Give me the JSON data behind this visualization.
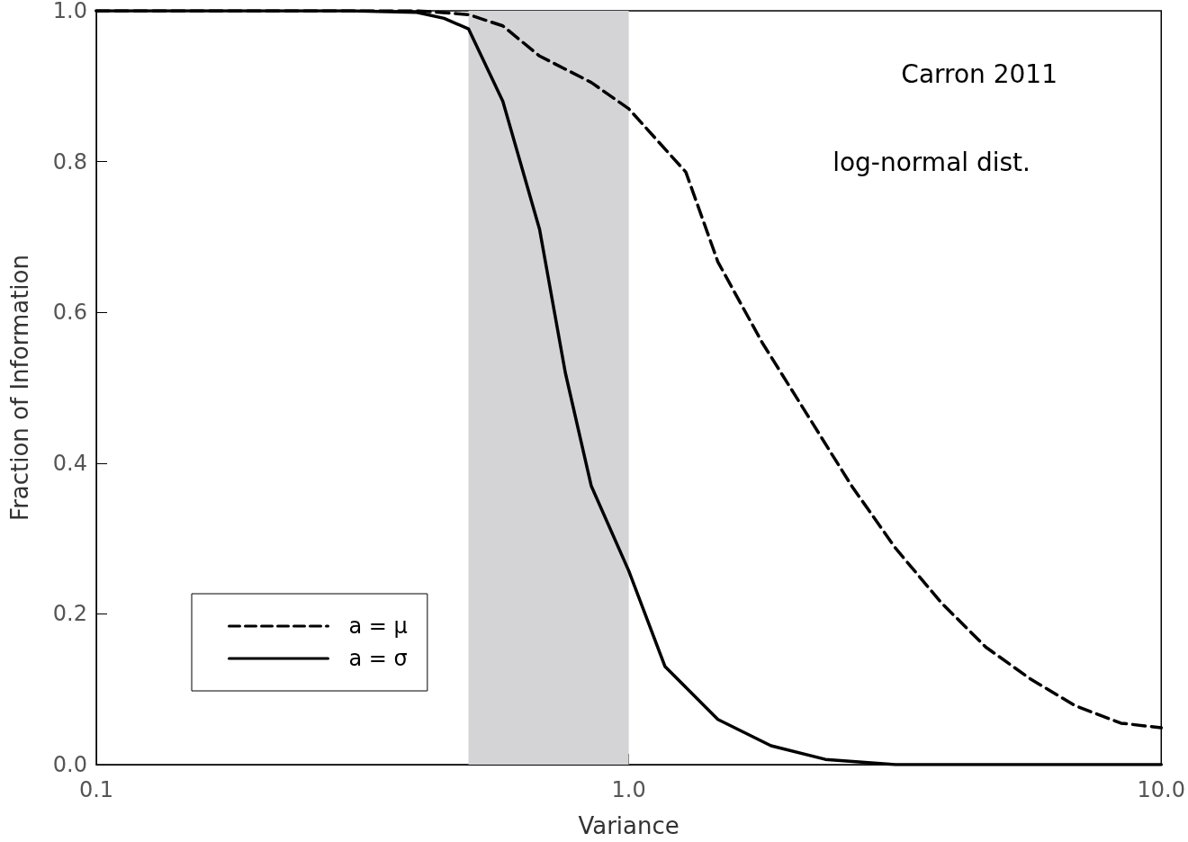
{
  "chart_data": {
    "type": "line",
    "xlabel": "Variance",
    "ylabel": "Fraction of Information",
    "annotations": [
      "Carron 2011",
      "log-normal dist."
    ],
    "log": "x",
    "xlim": [
      0.1,
      10
    ],
    "xticks": [
      {
        "value": 0.1,
        "label": "0.1"
      },
      {
        "value": 1,
        "label": "1.0"
      },
      {
        "value": 10,
        "label": "10.0"
      }
    ],
    "ylim": [
      0,
      1
    ],
    "yticks": [
      {
        "value": 0,
        "label": "0.0"
      },
      {
        "value": 0.2,
        "label": "0.2"
      },
      {
        "value": 0.4,
        "label": "0.4"
      },
      {
        "value": 0.6,
        "label": "0.6"
      },
      {
        "value": 0.8,
        "label": "0.8"
      },
      {
        "value": 1,
        "label": "1.0"
      }
    ],
    "grid": false,
    "legend": "bottom left",
    "marker": "none",
    "bands": [
      {
        "axis": "x",
        "from": 0.5,
        "to": 1.0,
        "color": "#d4d4d6"
      }
    ],
    "series": [
      {
        "name": "a = μ",
        "color": "#000000",
        "line_style": "dashed",
        "x": [
          0.1,
          0.3,
          0.4,
          0.5,
          0.58,
          0.68,
          0.85,
          1.0,
          1.28,
          1.47,
          1.78,
          2.16,
          2.62,
          3.17,
          3.86,
          4.68,
          5.67,
          6.9,
          8.4,
          10
        ],
        "values": [
          1.0,
          1.0,
          1.0,
          0.995,
          0.98,
          0.94,
          0.905,
          0.87,
          0.786,
          0.667,
          0.56,
          0.465,
          0.37,
          0.287,
          0.215,
          0.156,
          0.114,
          0.078,
          0.055,
          0.049
        ]
      },
      {
        "name": "a = σ",
        "color": "#000000",
        "line_style": "solid",
        "x": [
          0.1,
          0.3,
          0.4,
          0.45,
          0.5,
          0.58,
          0.68,
          0.76,
          0.85,
          1.0,
          1.17,
          1.47,
          1.85,
          2.34,
          3.17,
          5,
          10
        ],
        "values": [
          1.0,
          1.0,
          0.998,
          0.99,
          0.976,
          0.88,
          0.71,
          0.52,
          0.37,
          0.257,
          0.13,
          0.06,
          0.025,
          0.007,
          0.0,
          0.0,
          0.0
        ]
      }
    ]
  }
}
